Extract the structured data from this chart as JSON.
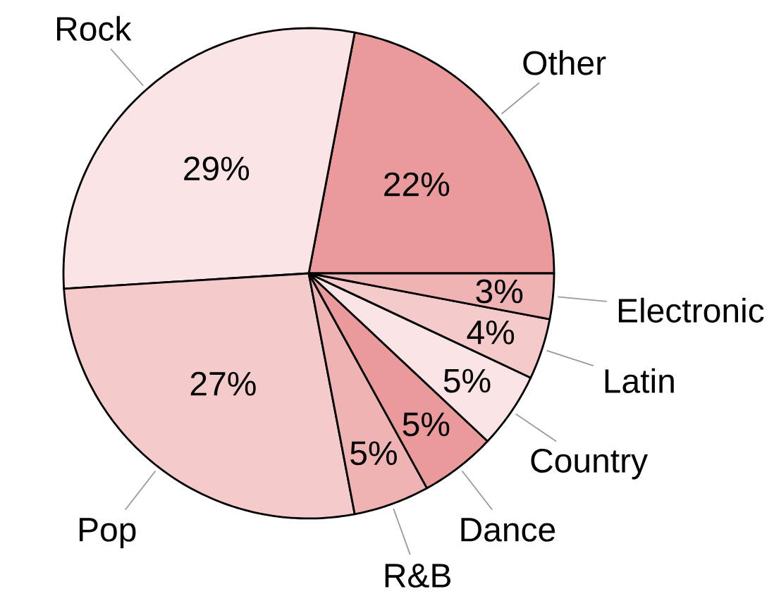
{
  "chart_data": {
    "type": "pie",
    "categories": [
      "Other",
      "Rock",
      "Pop",
      "R&B",
      "Dance",
      "Country",
      "Latin",
      "Electronic"
    ],
    "values": [
      22,
      29,
      27,
      5,
      5,
      5,
      4,
      3
    ],
    "value_labels": [
      "22%",
      "29%",
      "27%",
      "5%",
      "5%",
      "5%",
      "4%",
      "3%"
    ],
    "colors": [
      "#ea9a9b",
      "#fae4e5",
      "#f4cacb",
      "#f0b3b4",
      "#ea9a9b",
      "#fae4e5",
      "#f4cacb",
      "#f0b3b4"
    ]
  }
}
